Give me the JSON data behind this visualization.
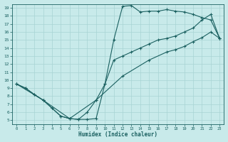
{
  "xlabel": "Humidex (Indice chaleur)",
  "background_color": "#c8eaea",
  "grid_color": "#a8d4d4",
  "line_color": "#1a6060",
  "xlim": [
    -0.5,
    23.5
  ],
  "ylim": [
    4.5,
    19.5
  ],
  "xticks": [
    0,
    1,
    2,
    3,
    4,
    5,
    6,
    7,
    8,
    9,
    10,
    11,
    12,
    13,
    14,
    15,
    16,
    17,
    18,
    19,
    20,
    21,
    22,
    23
  ],
  "yticks": [
    5,
    6,
    7,
    8,
    9,
    10,
    11,
    12,
    13,
    14,
    15,
    16,
    17,
    18,
    19
  ],
  "line1_x": [
    0,
    1,
    2,
    3,
    4,
    5,
    6,
    7,
    8,
    9,
    10,
    11,
    12,
    13,
    14,
    15,
    16,
    17,
    18,
    19,
    20,
    21,
    22,
    23
  ],
  "line1_y": [
    9.5,
    9.0,
    8.2,
    7.5,
    6.5,
    5.5,
    5.2,
    5.1,
    5.1,
    5.2,
    9.5,
    15.0,
    19.2,
    19.3,
    18.5,
    18.6,
    18.6,
    18.8,
    18.6,
    18.5,
    18.2,
    17.8,
    17.5,
    15.2
  ],
  "line2_x": [
    0,
    1,
    2,
    3,
    4,
    5,
    6,
    7,
    8,
    9,
    10,
    11,
    12,
    13,
    14,
    15,
    16,
    17,
    18,
    19,
    20,
    21,
    22,
    23
  ],
  "line2_y": [
    9.5,
    9.0,
    8.2,
    7.5,
    6.5,
    5.5,
    5.2,
    5.1,
    6.0,
    7.5,
    9.5,
    12.5,
    13.0,
    13.5,
    14.0,
    14.5,
    15.0,
    15.2,
    15.5,
    16.0,
    16.5,
    17.5,
    18.2,
    15.2
  ],
  "line3_x": [
    0,
    3,
    6,
    9,
    12,
    15,
    17,
    18,
    19,
    20,
    21,
    22,
    23
  ],
  "line3_y": [
    9.5,
    7.5,
    5.2,
    7.5,
    10.5,
    12.5,
    13.5,
    13.8,
    14.2,
    14.8,
    15.3,
    16.0,
    15.2
  ]
}
